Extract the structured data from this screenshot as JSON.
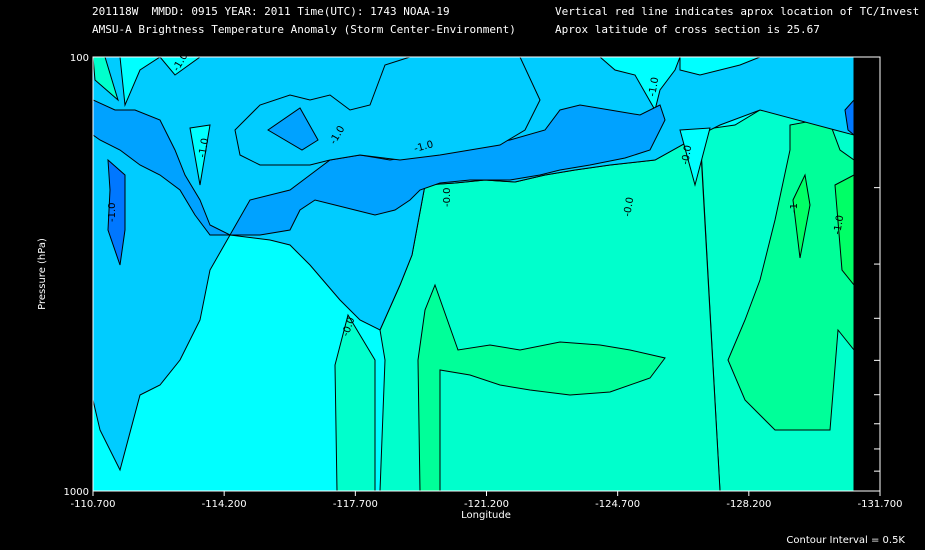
{
  "header": {
    "line1_left": "201118W  MMDD: 0915 YEAR: 2011 Time(UTC): 1743 NOAA-19",
    "line2_left": "AMSU-A Brightness Temperature Anomaly (Storm Center-Environment)",
    "line1_right": "Vertical red line indicates aprox location of TC/Invest",
    "line2_right": "Aprox latitude of cross section is 25.67"
  },
  "footer": {
    "contour_interval": "Contour Interval = 0.5K"
  },
  "chart_data": {
    "type": "contour",
    "xlabel": "Longitude",
    "ylabel": "Pressure (hPa)",
    "x_ticks": [
      "-110.700",
      "-114.200",
      "-117.700",
      "-121.200",
      "-124.700",
      "-128.200",
      "-131.700"
    ],
    "xlim": [
      -110.7,
      -131.7
    ],
    "y_ticks": [
      "100",
      "1000"
    ],
    "ylim": [
      1000,
      100
    ],
    "y_scale": "log",
    "contour_interval_K": 0.5,
    "contour_labels": [
      "-1.0",
      "-1.0",
      "-1.0",
      "-1.0",
      "-1.0",
      "-1.0",
      "-0.0",
      "-0.0",
      "-0.0",
      "-0.0",
      "-1",
      "-1.0"
    ],
    "levels": [
      {
        "range": "below -1.5",
        "color": "#0077ff"
      },
      {
        "range": "-1.5 to -1.0",
        "color": "#00a2ff"
      },
      {
        "range": "-1.0 to -0.5",
        "color": "#00ccff"
      },
      {
        "range": "-0.5 to 0.0",
        "color": "#00ffff"
      },
      {
        "range": "0.0 to 0.5",
        "color": "#00ffcc"
      },
      {
        "range": "0.5 to 1.0",
        "color": "#00ff99"
      },
      {
        "range": "1.0 to 1.5",
        "color": "#00ff66"
      }
    ]
  }
}
